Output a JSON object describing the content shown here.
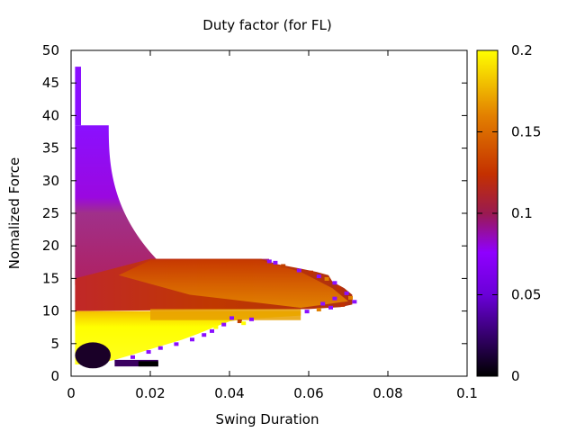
{
  "chart_data": {
    "type": "heatmap",
    "title": "Duty factor (for FL)",
    "xlabel": "Swing Duration",
    "ylabel": "Nomalized Force",
    "xlim": [
      0,
      0.1
    ],
    "ylim": [
      0,
      50
    ],
    "x_ticks": [
      "0",
      "0.02",
      "0.04",
      "0.06",
      "0.08",
      "0.1"
    ],
    "x_tick_values": [
      0,
      0.02,
      0.04,
      0.06,
      0.08,
      0.1
    ],
    "y_ticks": [
      "0",
      "5",
      "10",
      "15",
      "20",
      "25",
      "30",
      "35",
      "40",
      "45",
      "50"
    ],
    "y_tick_values": [
      0,
      5,
      10,
      15,
      20,
      25,
      30,
      35,
      40,
      45,
      50
    ],
    "colorbar": {
      "range": [
        0,
        0.2
      ],
      "ticks": [
        "0",
        "0.05",
        "0.1",
        "0.15",
        "0.2"
      ],
      "tick_values": [
        0,
        0.05,
        0.1,
        0.15,
        0.2
      ],
      "palette": [
        "#000000",
        "#8000ff",
        "#c03000",
        "#ffff00"
      ]
    },
    "grid": false,
    "bands": [
      {
        "y_range": [
          38.5,
          47.5
        ],
        "x_range": [
          0.001,
          0.0025
        ],
        "value": 0.06
      },
      {
        "y_range": [
          18,
          38.5
        ],
        "x_max_at_top": 0.0095,
        "x_max_at_bottom": 0.022,
        "value": 0.07
      },
      {
        "y_range": [
          14,
          18
        ],
        "x_range": [
          0.001,
          0.05
        ],
        "value": 0.12
      },
      {
        "y_range": [
          10,
          14
        ],
        "x_range": [
          0.001,
          0.071
        ],
        "value": 0.14
      },
      {
        "y_range": [
          8.5,
          10
        ],
        "x_range": [
          0.001,
          0.058
        ],
        "value": 0.17
      },
      {
        "y_range": [
          1.5,
          8.5
        ],
        "x_range": [
          0.001,
          0.04
        ],
        "value": 0.2
      },
      {
        "y_range": [
          1.5,
          4.5
        ],
        "x_range": [
          0.001,
          0.022
        ],
        "value": 0.01
      }
    ]
  }
}
